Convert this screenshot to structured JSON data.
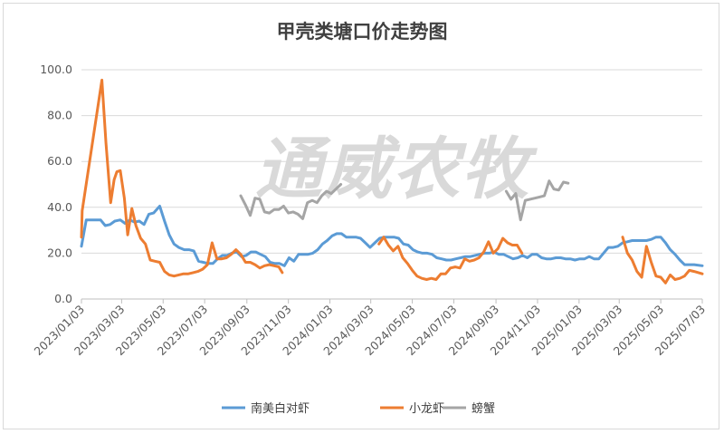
{
  "chart_data": {
    "type": "line",
    "title": "甲壳类塘口价走势图",
    "watermark": "通威农牧",
    "xlabel": "",
    "ylabel": "",
    "ylim": [
      0,
      100
    ],
    "y_ticks": [
      "0.0",
      "20.0",
      "40.0",
      "60.0",
      "80.0",
      "100.0"
    ],
    "x_tick_labels": [
      "2023/01/03",
      "2023/03/03",
      "2023/05/03",
      "2023/07/03",
      "2023/09/03",
      "2023/11/03",
      "2024/01/03",
      "2024/03/03",
      "2024/05/03",
      "2024/07/03",
      "2024/09/03",
      "2024/11/03",
      "2025/01/03",
      "2025/03/03",
      "2025/05/03",
      "2025/07/03"
    ],
    "grid": "horizontal",
    "legend_position": "bottom",
    "series": [
      {
        "name": "南美白对虾",
        "color": "#5b9bd5",
        "points": [
          [
            "2023/01/03",
            23
          ],
          [
            "2023/01/06",
            28
          ],
          [
            "2023/01/10",
            34.5
          ],
          [
            "2023/01/20",
            34.5
          ],
          [
            "2023/01/31",
            34.5
          ],
          [
            "2023/02/07",
            32
          ],
          [
            "2023/02/14",
            32.5
          ],
          [
            "2023/02/21",
            34
          ],
          [
            "2023/03/01",
            34.5
          ],
          [
            "2023/03/08",
            33
          ],
          [
            "2023/03/15",
            34.5
          ],
          [
            "2023/03/22",
            33.5
          ],
          [
            "2023/03/29",
            34
          ],
          [
            "2023/04/05",
            32.5
          ],
          [
            "2023/04/12",
            37
          ],
          [
            "2023/04/19",
            37.5
          ],
          [
            "2023/04/28",
            40.5
          ],
          [
            "2023/05/05",
            34
          ],
          [
            "2023/05/12",
            28
          ],
          [
            "2023/05/19",
            24
          ],
          [
            "2023/05/26",
            22.5
          ],
          [
            "2023/06/03",
            21.5
          ],
          [
            "2023/06/10",
            21.5
          ],
          [
            "2023/06/17",
            21
          ],
          [
            "2023/06/24",
            16.5
          ],
          [
            "2023/07/01",
            16
          ],
          [
            "2023/07/08",
            15.5
          ],
          [
            "2023/07/15",
            15.5
          ],
          [
            "2023/07/22",
            17.5
          ],
          [
            "2023/07/29",
            19
          ],
          [
            "2023/08/05",
            19
          ],
          [
            "2023/08/12",
            20
          ],
          [
            "2023/08/19",
            20.5
          ],
          [
            "2023/08/26",
            18.5
          ],
          [
            "2023/09/02",
            19
          ],
          [
            "2023/09/09",
            20.5
          ],
          [
            "2023/09/16",
            20.5
          ],
          [
            "2023/09/23",
            19.5
          ],
          [
            "2023/09/30",
            18.5
          ],
          [
            "2023/10/07",
            16
          ],
          [
            "2023/10/14",
            15.5
          ],
          [
            "2023/10/21",
            15.5
          ],
          [
            "2023/10/28",
            14.5
          ],
          [
            "2023/11/04",
            18
          ],
          [
            "2023/11/11",
            16.5
          ],
          [
            "2023/11/18",
            19.5
          ],
          [
            "2023/11/25",
            19.5
          ],
          [
            "2023/12/02",
            19.5
          ],
          [
            "2023/12/09",
            20
          ],
          [
            "2023/12/16",
            21.5
          ],
          [
            "2023/12/23",
            24
          ],
          [
            "2023/12/30",
            25.5
          ],
          [
            "2024/01/06",
            27.5
          ],
          [
            "2024/01/13",
            28.5
          ],
          [
            "2024/01/20",
            28.5
          ],
          [
            "2024/01/27",
            27
          ],
          [
            "2024/02/03",
            27
          ],
          [
            "2024/02/10",
            27
          ],
          [
            "2024/02/17",
            26.5
          ],
          [
            "2024/02/24",
            24.5
          ],
          [
            "2024/03/02",
            22.5
          ],
          [
            "2024/03/09",
            24.5
          ],
          [
            "2024/03/16",
            26.5
          ],
          [
            "2024/03/23",
            27
          ],
          [
            "2024/03/30",
            27
          ],
          [
            "2024/04/06",
            27
          ],
          [
            "2024/04/13",
            26.5
          ],
          [
            "2024/04/20",
            24
          ],
          [
            "2024/04/27",
            23.5
          ],
          [
            "2024/05/04",
            21.5
          ],
          [
            "2024/05/11",
            20.5
          ],
          [
            "2024/05/18",
            20
          ],
          [
            "2024/05/25",
            20
          ],
          [
            "2024/06/01",
            19.5
          ],
          [
            "2024/06/08",
            18
          ],
          [
            "2024/06/15",
            17.5
          ],
          [
            "2024/06/22",
            17
          ],
          [
            "2024/06/29",
            17
          ],
          [
            "2024/07/06",
            17.5
          ],
          [
            "2024/07/13",
            18
          ],
          [
            "2024/07/20",
            18.5
          ],
          [
            "2024/07/27",
            18.5
          ],
          [
            "2024/08/03",
            19
          ],
          [
            "2024/08/10",
            19.5
          ],
          [
            "2024/08/17",
            20
          ],
          [
            "2024/08/24",
            20
          ],
          [
            "2024/08/31",
            20.5
          ],
          [
            "2024/09/07",
            19.5
          ],
          [
            "2024/09/14",
            19.5
          ],
          [
            "2024/09/21",
            18.5
          ],
          [
            "2024/09/28",
            17.5
          ],
          [
            "2024/10/05",
            18
          ],
          [
            "2024/10/12",
            19
          ],
          [
            "2024/10/19",
            18
          ],
          [
            "2024/10/26",
            19.5
          ],
          [
            "2024/11/02",
            19.5
          ],
          [
            "2024/11/09",
            18
          ],
          [
            "2024/11/16",
            17.5
          ],
          [
            "2024/11/23",
            17.5
          ],
          [
            "2024/11/30",
            18
          ],
          [
            "2024/12/07",
            18
          ],
          [
            "2024/12/14",
            17.5
          ],
          [
            "2024/12/21",
            17.5
          ],
          [
            "2024/12/28",
            17
          ],
          [
            "2025/01/04",
            17.5
          ],
          [
            "2025/01/11",
            17.5
          ],
          [
            "2025/01/18",
            18.5
          ],
          [
            "2025/01/25",
            17.5
          ],
          [
            "2025/02/01",
            17.5
          ],
          [
            "2025/02/08",
            20
          ],
          [
            "2025/02/15",
            22.5
          ],
          [
            "2025/02/22",
            22.5
          ],
          [
            "2025/03/01",
            23
          ],
          [
            "2025/03/08",
            24.5
          ],
          [
            "2025/03/15",
            25
          ],
          [
            "2025/03/22",
            25.5
          ],
          [
            "2025/03/29",
            25.5
          ],
          [
            "2025/04/05",
            25.5
          ],
          [
            "2025/04/12",
            25.5
          ],
          [
            "2025/04/19",
            26
          ],
          [
            "2025/04/26",
            27
          ],
          [
            "2025/05/03",
            27
          ],
          [
            "2025/05/10",
            24.5
          ],
          [
            "2025/05/17",
            21.5
          ],
          [
            "2025/05/24",
            19.5
          ],
          [
            "2025/05/31",
            17
          ],
          [
            "2025/06/07",
            15
          ],
          [
            "2025/06/14",
            15
          ],
          [
            "2025/06/21",
            15
          ],
          [
            "2025/07/03",
            14.5
          ]
        ]
      },
      {
        "name": "小龙虾",
        "color": "#ed7d31",
        "points": [
          [
            "2023/01/03",
            27
          ],
          [
            "2023/01/04",
            38.5
          ],
          [
            "2023/02/02",
            95.5
          ],
          [
            "2023/02/08",
            68
          ],
          [
            "2023/02/15",
            42
          ],
          [
            "2023/02/20",
            52
          ],
          [
            "2023/02/24",
            55.5
          ],
          [
            "2023/03/01",
            56
          ],
          [
            "2023/03/07",
            44
          ],
          [
            "2023/03/12",
            28
          ],
          [
            "2023/03/18",
            39.5
          ],
          [
            "2023/03/24",
            32
          ],
          [
            "2023/03/31",
            26.5
          ],
          [
            "2023/04/07",
            24
          ],
          [
            "2023/04/14",
            17
          ],
          [
            "2023/04/21",
            16.5
          ],
          [
            "2023/04/28",
            16
          ],
          [
            "2023/05/05",
            12
          ],
          [
            "2023/05/12",
            10.5
          ],
          [
            "2023/05/19",
            10
          ],
          [
            "2023/05/26",
            10.5
          ],
          [
            "2023/06/02",
            11
          ],
          [
            "2023/06/09",
            11
          ],
          [
            "2023/06/16",
            11.5
          ],
          [
            "2023/06/23",
            12
          ],
          [
            "2023/06/30",
            13
          ],
          [
            "2023/07/07",
            15
          ],
          [
            "2023/07/14",
            24.5
          ],
          [
            "2023/07/21",
            17.5
          ],
          [
            "2023/07/28",
            17.5
          ],
          [
            "2023/08/04",
            18
          ],
          [
            "2023/08/11",
            19.5
          ],
          [
            "2023/08/18",
            21.5
          ],
          [
            "2023/08/25",
            19.5
          ],
          [
            "2023/09/01",
            16
          ],
          [
            "2023/09/08",
            16
          ],
          [
            "2023/09/15",
            15
          ],
          [
            "2023/09/22",
            13.5
          ],
          [
            "2023/09/29",
            14.5
          ],
          [
            "2023/10/06",
            15
          ],
          [
            "2023/10/13",
            14.5
          ],
          [
            "2023/10/20",
            14
          ],
          [
            "2023/10/25",
            11.5
          ],
          null,
          [
            "2024/03/15",
            24
          ],
          [
            "2024/03/22",
            27
          ],
          [
            "2024/03/29",
            23.5
          ],
          [
            "2024/04/05",
            21
          ],
          [
            "2024/04/12",
            23
          ],
          [
            "2024/04/19",
            18
          ],
          [
            "2024/04/26",
            15.5
          ],
          [
            "2024/05/03",
            12.5
          ],
          [
            "2024/05/10",
            10
          ],
          [
            "2024/05/17",
            9
          ],
          [
            "2024/05/24",
            8.5
          ],
          [
            "2024/05/31",
            9
          ],
          [
            "2024/06/07",
            8.5
          ],
          [
            "2024/06/14",
            11
          ],
          [
            "2024/06/21",
            11
          ],
          [
            "2024/06/28",
            13.5
          ],
          [
            "2024/07/05",
            14
          ],
          [
            "2024/07/12",
            13.5
          ],
          [
            "2024/07/19",
            17.5
          ],
          [
            "2024/07/26",
            16.5
          ],
          [
            "2024/08/02",
            17
          ],
          [
            "2024/08/09",
            18
          ],
          [
            "2024/08/16",
            20.5
          ],
          [
            "2024/08/23",
            25
          ],
          [
            "2024/08/30",
            20
          ],
          [
            "2024/09/06",
            22
          ],
          [
            "2024/09/13",
            26.5
          ],
          [
            "2024/09/20",
            24.5
          ],
          [
            "2024/09/27",
            23.5
          ],
          [
            "2024/10/04",
            23.5
          ],
          [
            "2024/10/11",
            20
          ],
          null,
          [
            "2025/03/08",
            27
          ],
          [
            "2025/03/15",
            20
          ],
          [
            "2025/03/22",
            17
          ],
          [
            "2025/03/29",
            12
          ],
          [
            "2025/04/05",
            9.5
          ],
          [
            "2025/04/12",
            23
          ],
          [
            "2025/04/19",
            16
          ],
          [
            "2025/04/26",
            10
          ],
          [
            "2025/05/03",
            9.5
          ],
          [
            "2025/05/10",
            7
          ],
          [
            "2025/05/17",
            10.5
          ],
          [
            "2025/05/24",
            8.5
          ],
          [
            "2025/05/31",
            9
          ],
          [
            "2025/06/07",
            10
          ],
          [
            "2025/06/14",
            12.5
          ],
          [
            "2025/06/21",
            12
          ],
          [
            "2025/07/03",
            11
          ]
        ]
      },
      {
        "name": "螃蟹",
        "color": "#a5a5a5",
        "points": [
          [
            "2023/08/25",
            45
          ],
          [
            "2023/09/01",
            41
          ],
          [
            "2023/09/08",
            36.5
          ],
          [
            "2023/09/15",
            44
          ],
          [
            "2023/09/22",
            43.5
          ],
          [
            "2023/09/29",
            38
          ],
          [
            "2023/10/06",
            37.5
          ],
          [
            "2023/10/13",
            39
          ],
          [
            "2023/10/20",
            39
          ],
          [
            "2023/10/27",
            40.5
          ],
          [
            "2023/11/03",
            37.5
          ],
          [
            "2023/11/10",
            38
          ],
          [
            "2023/11/17",
            37
          ],
          [
            "2023/11/24",
            35
          ],
          [
            "2023/12/01",
            42
          ],
          [
            "2023/12/08",
            43
          ],
          [
            "2023/12/15",
            42
          ],
          [
            "2023/12/22",
            45
          ],
          [
            "2023/12/29",
            47
          ],
          [
            "2024/01/05",
            46
          ],
          [
            "2024/01/12",
            48
          ],
          [
            "2024/01/19",
            50
          ],
          null,
          [
            "2024/09/18",
            47
          ],
          [
            "2024/09/25",
            43.5
          ],
          [
            "2024/10/02",
            46
          ],
          [
            "2024/10/09",
            34.5
          ],
          [
            "2024/10/16",
            43
          ],
          [
            "2024/10/23",
            43.5
          ],
          [
            "2024/10/30",
            44
          ],
          [
            "2024/11/06",
            44.5
          ],
          [
            "2024/11/13",
            45
          ],
          [
            "2024/11/20",
            51.5
          ],
          [
            "2024/11/27",
            48
          ],
          [
            "2024/12/04",
            47.5
          ],
          [
            "2024/12/11",
            51
          ],
          [
            "2024/12/18",
            50.5
          ]
        ]
      }
    ]
  }
}
